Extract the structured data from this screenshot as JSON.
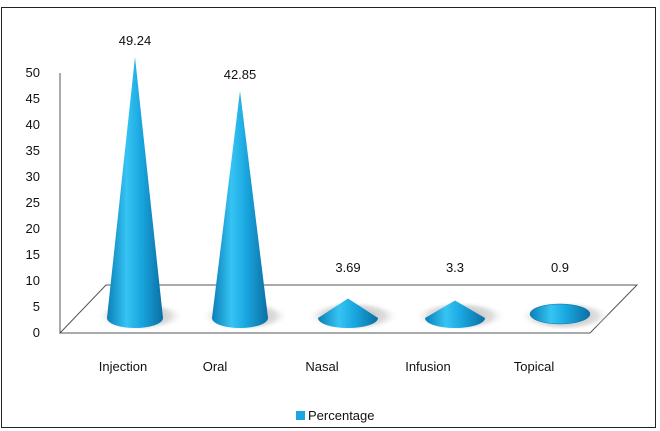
{
  "chart_data": {
    "type": "bar",
    "shape": "cone-3d",
    "categories": [
      "Injection",
      "Oral",
      "Nasal",
      "Infusion",
      "Topical"
    ],
    "series": [
      {
        "name": "Percentage",
        "values": [
          49.24,
          42.85,
          3.69,
          3.3,
          0.9
        ],
        "color": "#1aa7e0"
      }
    ],
    "data_labels": [
      "49.24",
      "42.85",
      "3.69",
      "3.3",
      "0.9"
    ],
    "y_ticks": [
      "0",
      "5",
      "10",
      "15",
      "20",
      "25",
      "30",
      "35",
      "40",
      "45",
      "50"
    ],
    "ylim": [
      0,
      50
    ],
    "grid": false,
    "legend": {
      "position": "bottom",
      "label": "Percentage"
    },
    "title": "",
    "xlabel": "",
    "ylabel": ""
  }
}
